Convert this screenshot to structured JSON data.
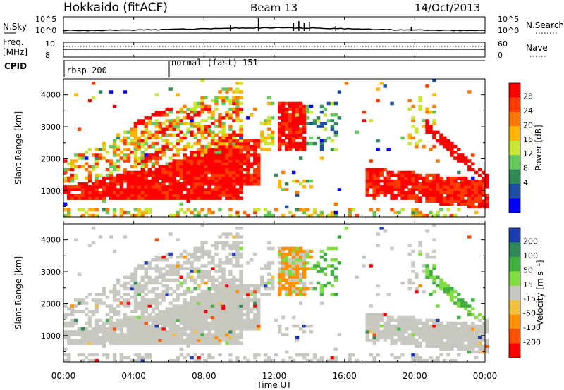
{
  "header": {
    "station": "Hokkaido (fitACF)",
    "beam": "Beam 13",
    "date": "14/Oct/2013"
  },
  "noise_panel": {
    "left_label": "N.Sky",
    "right_label": "N.Search",
    "left_ticks": [
      "10^5",
      "10^0"
    ],
    "right_ticks": [
      "10^5",
      "10^0"
    ]
  },
  "freq_panel": {
    "left_label_line1": "Freq.",
    "left_label_line2": "[MHz]",
    "right_label": "Nave",
    "left_ticks": [
      "10",
      "8"
    ],
    "right_ticks": [
      "60",
      "0"
    ]
  },
  "cpid_panel": {
    "label": "CPID",
    "segments": [
      {
        "label": "rbsp 200",
        "start_hour": 0
      },
      {
        "label": "normal (fast) 151",
        "start_hour": 6
      }
    ]
  },
  "x_axis": {
    "title": "Time UT",
    "tick_labels": [
      "00:00",
      "04:00",
      "08:00",
      "12:00",
      "16:00",
      "20:00",
      "00:00"
    ]
  },
  "power_panel": {
    "ylabel": "Slant Range [km]",
    "ytick_labels": [
      "1000",
      "2000",
      "3000",
      "4000"
    ],
    "colorbar_title": "Power [dB]",
    "colorbar_ticks": [
      "28",
      "24",
      "20",
      "16",
      "12",
      "8",
      "4"
    ],
    "colorbar_colors": [
      "#ff0000",
      "#ff3c00",
      "#ff7800",
      "#ffb400",
      "#c8e632",
      "#64c85a",
      "#2f8a56",
      "#1d4fa3",
      "#0000ff"
    ]
  },
  "velocity_panel": {
    "ylabel": "Slant Range [km]",
    "ytick_labels": [
      "1000",
      "2000",
      "3000",
      "4000"
    ],
    "colorbar_title": "Velocity [m s⁻¹]",
    "colorbar_ticks": [
      "200",
      "100",
      "50",
      "15",
      "-15",
      "-50",
      "-100",
      "-200"
    ],
    "colorbar_colors": [
      "#1e3cb4",
      "#2e8b57",
      "#40b040",
      "#80dd40",
      "#c8c8c0",
      "#f0c040",
      "#ff9000",
      "#ff5000",
      "#ff0000"
    ]
  },
  "chart_data": {
    "type": "heatmap",
    "title": "Hokkaido (fitACF)",
    "xlabel": "Time UT",
    "ylabel": "Slant Range [km]",
    "xlim_hours": [
      0,
      24
    ],
    "ylim_km": [
      180,
      4500
    ],
    "echo_regions": [
      {
        "name": "near-range ground scatter band",
        "hours": [
          0,
          24
        ],
        "range_km": [
          700,
          1300
        ]
      },
      {
        "name": "expanding echoes (morning)",
        "hours": [
          0,
          10
        ],
        "range_km": [
          1000,
          3500
        ]
      },
      {
        "name": "midday ionospheric echoes",
        "hours": [
          12,
          15
        ],
        "range_km": [
          2000,
          3700
        ]
      },
      {
        "name": "evening band",
        "hours": [
          17,
          24
        ],
        "range_km": [
          700,
          1700
        ]
      },
      {
        "name": "evening diagonal",
        "hours": [
          20.5,
          24
        ],
        "range_km": [
          1500,
          4200
        ]
      }
    ]
  }
}
